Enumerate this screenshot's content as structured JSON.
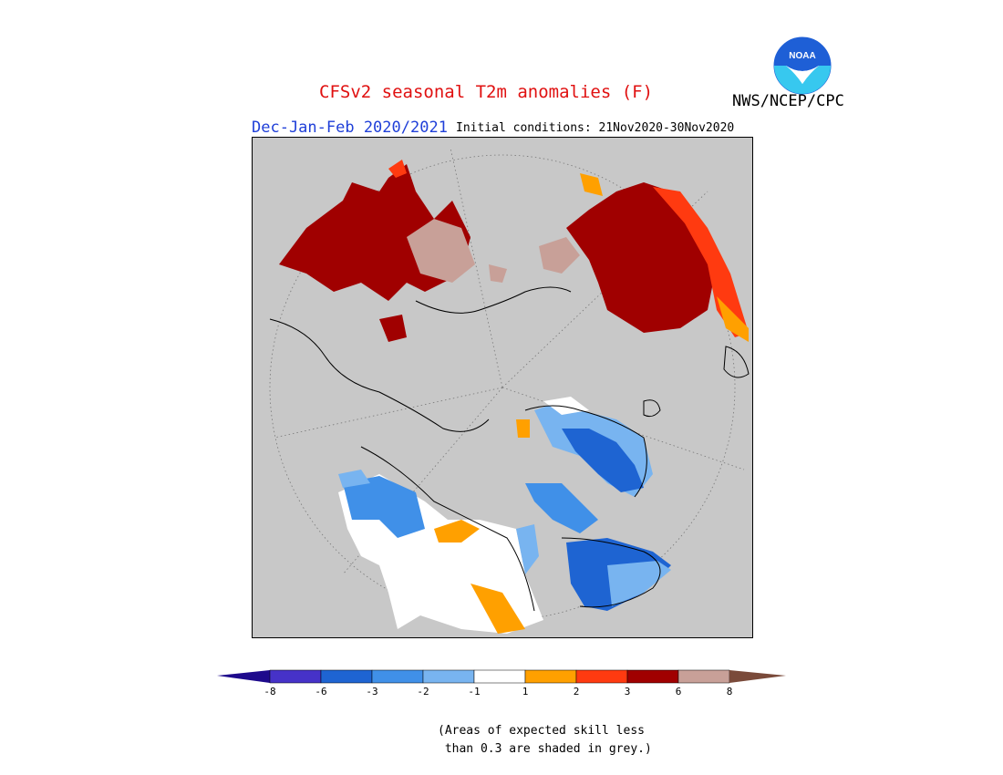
{
  "header": {
    "title": "CFSv2 seasonal T2m anomalies (F)",
    "agency": "NWS/NCEP/CPC",
    "season": "Dec-Jan-Feb 2020/2021",
    "initial_conditions": "Initial conditions: 21Nov2020-30Nov2020"
  },
  "logo": {
    "text": "NOAA",
    "icon": "noaa-logo-icon",
    "colors": {
      "blue": "#1e5fd6",
      "cyan": "#37c8ef"
    }
  },
  "map": {
    "projection": "north-polar-stereographic",
    "background": "#c8c8c8",
    "colors": {
      "land_warm_strong": "#a00000",
      "land_warm_extreme": "#c8a098",
      "warm_mid": "#ff3a10",
      "warm_low": "#ffa000",
      "cool_low": "#78b4f0",
      "cool_mid": "#4090e8",
      "cool_strong": "#1e64d2",
      "neutral": "#ffffff"
    }
  },
  "colorbar": {
    "colors": [
      "#1e0a8c",
      "#4632c8",
      "#1e64d2",
      "#4090e8",
      "#78b4f0",
      "#ffffff",
      "#ffa000",
      "#ff3a10",
      "#a00000",
      "#c8a098",
      "#7a4a3a"
    ],
    "ticks": [
      "-8",
      "-6",
      "-3",
      "-2",
      "-1",
      "1",
      "2",
      "3",
      "6",
      "8"
    ]
  },
  "footnote": {
    "line1": "(Areas of expected skill less",
    "line2": " than 0.3 are shaded in grey.)"
  }
}
